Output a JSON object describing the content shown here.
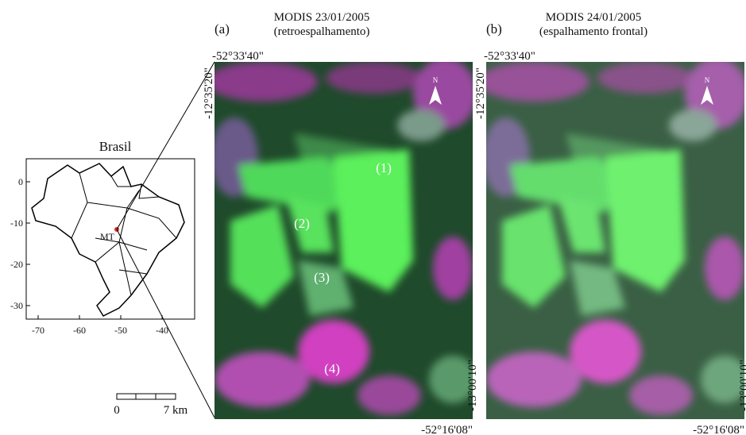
{
  "inset_map": {
    "title": "Brasil",
    "state_label": "MT",
    "xticks": [
      "-70",
      "-60",
      "-50",
      "-40"
    ],
    "yticks": [
      "0",
      "-10",
      "-20",
      "-30"
    ]
  },
  "scale_bar": {
    "start": "0",
    "end": "7 km"
  },
  "panels": [
    {
      "label": "(a)",
      "title": "MODIS 23/01/2005",
      "subtitle": "(retroespalhamento)",
      "top_lon": "-52°33'40\"",
      "left_lat": "-12°35'20\"",
      "right_lat": "-13°00'10\"",
      "bottom_lon": "-52°16'08\"",
      "north": "N",
      "areas": [
        "(1)",
        "(2)",
        "(3)",
        "(4)"
      ]
    },
    {
      "label": "(b)",
      "title": "MODIS 24/01/2005",
      "subtitle": "(espalhamento frontal)",
      "top_lon": "-52°33'40\"",
      "left_lat": "-12°35'20\"",
      "right_lat": "-13°00'10\"",
      "bottom_lon": "-52°16'08\"",
      "north": "N"
    }
  ]
}
